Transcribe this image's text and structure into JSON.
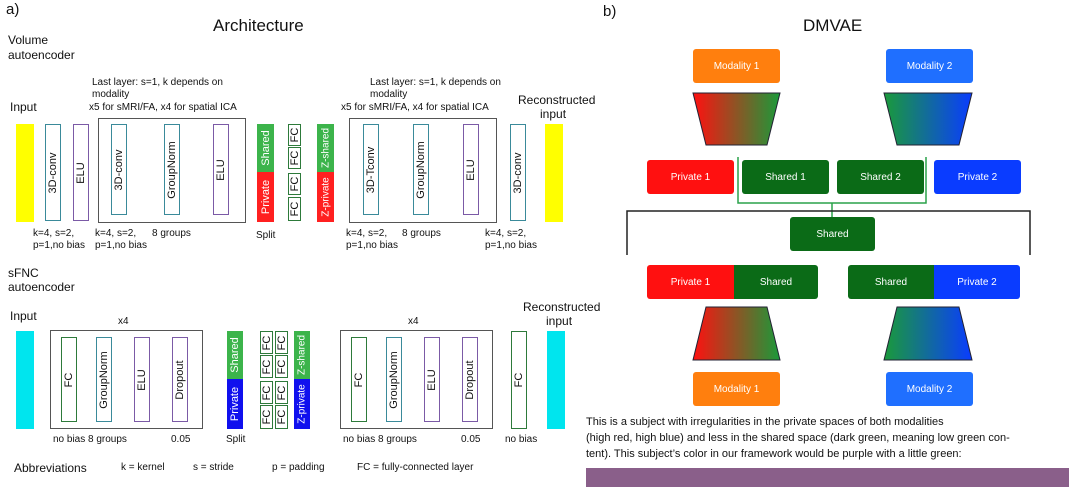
{
  "panel_a": {
    "tag": "a)",
    "title": "Architecture",
    "volume_label_1": "Volume",
    "volume_label_2": "autoencoder",
    "sfnc_label_1": "sFNC",
    "sfnc_label_2": "autoencoder",
    "input": "Input",
    "reconstructed_1": "Reconstructed",
    "reconstructed_2": "input",
    "note_line1": "Last layer: s=1, k depends on",
    "note_line2": "modality",
    "note_line3": "x5 for sMRI/FA, x4 for spatial ICA",
    "x4": "x4",
    "layers": {
      "conv3d": "3D-conv",
      "elu": "ELU",
      "groupnorm": "GroupNorm",
      "tconv3d": "3D-Tconv",
      "fc": "FC",
      "dropout": "Dropout",
      "shared": "Shared",
      "private": "Private",
      "z_shared": "Z-shared",
      "z_private": "Z-private"
    },
    "params": {
      "kernel_line1": "k=4, s=2,",
      "kernel_line2": "p=1,no bias",
      "groups": "8 groups",
      "split": "Split",
      "no_bias": "no bias",
      "dropout_rate": "0.05"
    },
    "abbrev": {
      "title": "Abbreviations",
      "k": "k = kernel",
      "s": "s = stride",
      "p": "p = padding",
      "fc": "FC = fully-connected layer"
    },
    "colors": {
      "volume_input": "#ffff00",
      "sfnc_input": "#00e5ee",
      "shared": "#3cb44b",
      "private_red": "#ff2020",
      "private_blue": "#1010ee"
    }
  },
  "panel_b": {
    "tag": "b)",
    "title": "DMVAE",
    "modality1": "Modality 1",
    "modality2": "Modality 2",
    "private1": "Private 1",
    "private2": "Private 2",
    "shared1": "Shared 1",
    "shared2": "Shared 2",
    "shared": "Shared",
    "caption_line1": "This is a subject with irregularities in the private spaces of both modalities",
    "caption_line2": "(high red, high blue) and less in the shared space (dark green, meaning low green con-",
    "caption_line3": "tent). This subject’s color in our framework would be purple with a little green:",
    "colors": {
      "modality": "#ff7f0e",
      "modality2": "#1f6fff",
      "dark_green": "#0b6b17",
      "red": "#ff1010",
      "blue": "#0a3cff",
      "swatch": "#8a5f8a"
    }
  }
}
